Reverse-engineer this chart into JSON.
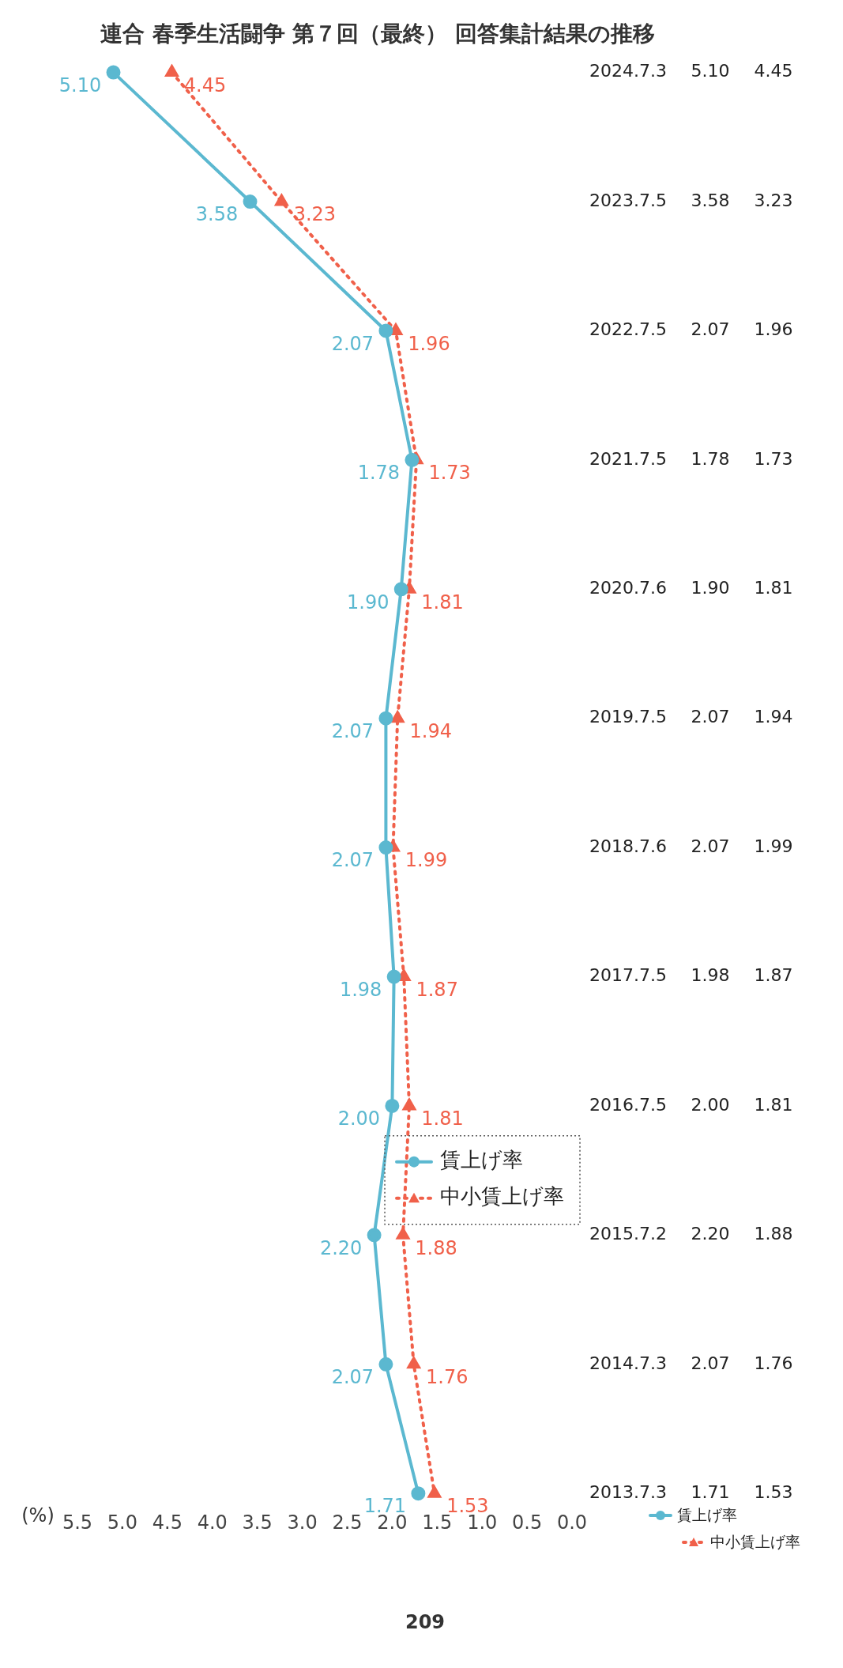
{
  "chart_data": {
    "type": "line",
    "orientation": "horizontal",
    "title": "連合 春季生活闘争 第７回（最終） 回答集計結果の推移",
    "xlabel": "(%)",
    "categories": [
      "2024.7.3",
      "2023.7.5",
      "2022.7.5",
      "2021.7.5",
      "2020.7.6",
      "2019.7.5",
      "2018.7.6",
      "2017.7.5",
      "2016.7.5",
      "2015.7.2",
      "2014.7.3",
      "2013.7.3"
    ],
    "series": [
      {
        "name": "賃上げ率",
        "color": "#5bb8d0",
        "marker": "circle",
        "line_style": "solid",
        "values": [
          5.1,
          3.58,
          2.07,
          1.78,
          1.9,
          2.07,
          2.07,
          1.98,
          2.0,
          2.2,
          2.07,
          1.71
        ],
        "value_labels": [
          "5.10",
          "3.58",
          "2.07",
          "1.78",
          "1.90",
          "2.07",
          "2.07",
          "1.98",
          "2.00",
          "2.20",
          "2.07",
          "1.71"
        ]
      },
      {
        "name": "中小賃上げ率",
        "color": "#f0604a",
        "marker": "triangle",
        "line_style": "dotted",
        "values": [
          4.45,
          3.23,
          1.96,
          1.73,
          1.81,
          1.94,
          1.99,
          1.87,
          1.81,
          1.88,
          1.76,
          1.53
        ],
        "value_labels": [
          "4.45",
          "3.23",
          "1.96",
          "1.73",
          "1.81",
          "1.94",
          "1.99",
          "1.87",
          "1.81",
          "1.88",
          "1.76",
          "1.53"
        ]
      }
    ],
    "xlim": [
      5.5,
      0
    ],
    "xticks": [
      {
        "value": 0,
        "label": "0.0"
      },
      {
        "value": 0.5,
        "label": "0.5"
      },
      {
        "value": 1,
        "label": "1.0"
      },
      {
        "value": 1.5,
        "label": "1.5"
      },
      {
        "value": 2,
        "label": "2.0"
      },
      {
        "value": 2.5,
        "label": "2.5"
      },
      {
        "value": 3,
        "label": "3.0"
      },
      {
        "value": 3.5,
        "label": "3.5"
      },
      {
        "value": 4,
        "label": "4.0"
      },
      {
        "value": 4.5,
        "label": "4.5"
      },
      {
        "value": 5,
        "label": "5.0"
      },
      {
        "value": 5.5,
        "label": "5.5"
      }
    ],
    "grid": false,
    "legend": "right",
    "annotations": [
      "209"
    ]
  }
}
